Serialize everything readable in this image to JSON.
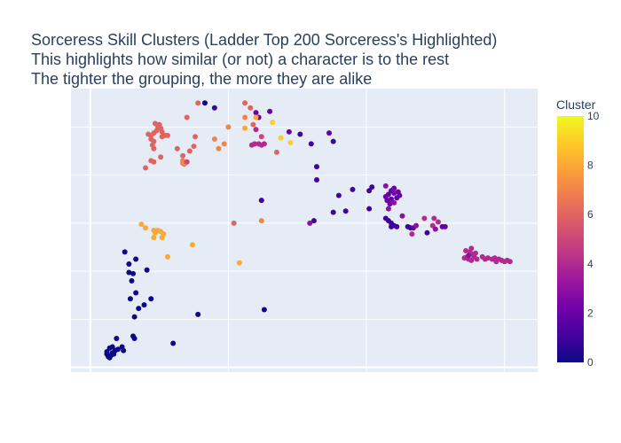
{
  "title": {
    "line1": "Sorceress Skill Clusters (Ladder Top 200 Sorceress's Highlighted)",
    "line2": "This highlights how similar (or not) a character is to the rest",
    "line3": "The tighter the grouping, the more they are alike"
  },
  "chart_data": {
    "type": "scatter",
    "title": "Sorceress Skill Clusters (Ladder Top 200 Sorceress's Highlighted)",
    "xlabel": "",
    "ylabel": "",
    "xlim": [
      -0.7,
      16.2
    ],
    "ylim": [
      -0.2,
      11.6
    ],
    "grid": true,
    "show_tick_labels": false,
    "colorbar": {
      "title": "Cluster",
      "min": 0,
      "max": 10,
      "ticks": [
        "0",
        "2",
        "4",
        "6",
        "8",
        "10"
      ],
      "colorscale": [
        "#0d0887",
        "#46039f",
        "#7201a8",
        "#9c179e",
        "#bd3786",
        "#d8576b",
        "#ed7953",
        "#fb9f3a",
        "#fdca26",
        "#f0f921"
      ]
    },
    "points": [
      {
        "x": 0.6,
        "y": 0.55,
        "c": 0
      },
      {
        "x": 0.65,
        "y": 0.45,
        "c": 0
      },
      {
        "x": 0.7,
        "y": 0.4,
        "c": 0
      },
      {
        "x": 0.75,
        "y": 0.5,
        "c": 0
      },
      {
        "x": 0.8,
        "y": 0.6,
        "c": 0
      },
      {
        "x": 0.85,
        "y": 0.55,
        "c": 0
      },
      {
        "x": 0.6,
        "y": 0.65,
        "c": 0
      },
      {
        "x": 0.9,
        "y": 0.7,
        "c": 0
      },
      {
        "x": 1.0,
        "y": 0.75,
        "c": 0
      },
      {
        "x": 0.8,
        "y": 0.85,
        "c": 0
      },
      {
        "x": 1.2,
        "y": 0.7,
        "c": 0
      },
      {
        "x": 1.15,
        "y": 0.85,
        "c": 0
      },
      {
        "x": 0.95,
        "y": 1.2,
        "c": 0
      },
      {
        "x": 0.7,
        "y": 0.8,
        "c": 0
      },
      {
        "x": 1.55,
        "y": 1.3,
        "c": 0
      },
      {
        "x": 1.6,
        "y": 1.2,
        "c": 0
      },
      {
        "x": 1.6,
        "y": 2.1,
        "c": 0
      },
      {
        "x": 1.45,
        "y": 2.85,
        "c": 0
      },
      {
        "x": 1.75,
        "y": 2.45,
        "c": 0
      },
      {
        "x": 1.95,
        "y": 2.6,
        "c": 0
      },
      {
        "x": 2.2,
        "y": 2.85,
        "c": 0
      },
      {
        "x": 1.65,
        "y": 3.1,
        "c": 0
      },
      {
        "x": 1.5,
        "y": 3.6,
        "c": 0
      },
      {
        "x": 1.55,
        "y": 3.9,
        "c": 0
      },
      {
        "x": 1.4,
        "y": 3.95,
        "c": 0
      },
      {
        "x": 1.4,
        "y": 4.3,
        "c": 0
      },
      {
        "x": 1.65,
        "y": 4.5,
        "c": 0
      },
      {
        "x": 1.25,
        "y": 4.8,
        "c": 0
      },
      {
        "x": 2.05,
        "y": 4.05,
        "c": 0
      },
      {
        "x": 3.0,
        "y": 1.0,
        "c": 0
      },
      {
        "x": 3.9,
        "y": 2.2,
        "c": 0
      },
      {
        "x": 6.3,
        "y": 2.4,
        "c": 0
      },
      {
        "x": 4.15,
        "y": 11.0,
        "c": 0
      },
      {
        "x": 4.5,
        "y": 10.8,
        "c": 1
      },
      {
        "x": 6.0,
        "y": 10.6,
        "c": 2
      },
      {
        "x": 6.1,
        "y": 10.4,
        "c": 2
      },
      {
        "x": 6.5,
        "y": 10.65,
        "c": 2
      },
      {
        "x": 7.2,
        "y": 9.8,
        "c": 2
      },
      {
        "x": 7.6,
        "y": 9.7,
        "c": 1
      },
      {
        "x": 8.0,
        "y": 9.3,
        "c": 1
      },
      {
        "x": 8.8,
        "y": 9.4,
        "c": 1
      },
      {
        "x": 8.65,
        "y": 9.75,
        "c": 2
      },
      {
        "x": 8.2,
        "y": 8.35,
        "c": 1
      },
      {
        "x": 8.2,
        "y": 7.8,
        "c": 1
      },
      {
        "x": 9.0,
        "y": 7.15,
        "c": 1
      },
      {
        "x": 9.5,
        "y": 7.4,
        "c": 1
      },
      {
        "x": 10.2,
        "y": 7.5,
        "c": 1
      },
      {
        "x": 10.1,
        "y": 7.35,
        "c": 1
      },
      {
        "x": 10.1,
        "y": 6.6,
        "c": 1
      },
      {
        "x": 9.25,
        "y": 6.5,
        "c": 1
      },
      {
        "x": 8.8,
        "y": 6.45,
        "c": 1
      },
      {
        "x": 8.1,
        "y": 6.1,
        "c": 1
      },
      {
        "x": 7.95,
        "y": 6.0,
        "c": 3
      },
      {
        "x": 6.2,
        "y": 6.95,
        "c": 1
      },
      {
        "x": 10.7,
        "y": 7.1,
        "c": 2
      },
      {
        "x": 10.8,
        "y": 7.2,
        "c": 2
      },
      {
        "x": 10.9,
        "y": 7.35,
        "c": 2
      },
      {
        "x": 11.0,
        "y": 7.25,
        "c": 2
      },
      {
        "x": 11.1,
        "y": 7.05,
        "c": 2
      },
      {
        "x": 11.2,
        "y": 7.15,
        "c": 2
      },
      {
        "x": 10.75,
        "y": 6.95,
        "c": 2
      },
      {
        "x": 10.9,
        "y": 7.0,
        "c": 2
      },
      {
        "x": 11.0,
        "y": 7.45,
        "c": 2
      },
      {
        "x": 10.7,
        "y": 7.55,
        "c": 3
      },
      {
        "x": 11.15,
        "y": 7.3,
        "c": 2
      },
      {
        "x": 10.85,
        "y": 6.8,
        "c": 2
      },
      {
        "x": 10.8,
        "y": 6.6,
        "c": 3
      },
      {
        "x": 11.0,
        "y": 6.85,
        "c": 3
      },
      {
        "x": 10.7,
        "y": 6.2,
        "c": 1
      },
      {
        "x": 10.8,
        "y": 6.1,
        "c": 1
      },
      {
        "x": 10.9,
        "y": 6.0,
        "c": 1
      },
      {
        "x": 11.0,
        "y": 5.9,
        "c": 1
      },
      {
        "x": 11.1,
        "y": 5.85,
        "c": 1
      },
      {
        "x": 10.9,
        "y": 5.85,
        "c": 1
      },
      {
        "x": 11.3,
        "y": 6.3,
        "c": 3
      },
      {
        "x": 11.5,
        "y": 5.85,
        "c": 1
      },
      {
        "x": 11.6,
        "y": 5.8,
        "c": 1
      },
      {
        "x": 11.7,
        "y": 5.8,
        "c": 2
      },
      {
        "x": 11.8,
        "y": 5.9,
        "c": 3
      },
      {
        "x": 11.65,
        "y": 5.55,
        "c": 4
      },
      {
        "x": 12.1,
        "y": 6.2,
        "c": 4
      },
      {
        "x": 12.45,
        "y": 6.2,
        "c": 4
      },
      {
        "x": 12.6,
        "y": 6.05,
        "c": 4
      },
      {
        "x": 12.4,
        "y": 5.9,
        "c": 4
      },
      {
        "x": 12.5,
        "y": 5.75,
        "c": 3
      },
      {
        "x": 12.75,
        "y": 5.85,
        "c": 2
      },
      {
        "x": 12.85,
        "y": 5.85,
        "c": 2
      },
      {
        "x": 12.2,
        "y": 5.6,
        "c": 1
      },
      {
        "x": 13.55,
        "y": 4.55,
        "c": 4
      },
      {
        "x": 13.65,
        "y": 4.6,
        "c": 4
      },
      {
        "x": 13.7,
        "y": 4.5,
        "c": 4
      },
      {
        "x": 13.8,
        "y": 4.45,
        "c": 4
      },
      {
        "x": 13.9,
        "y": 4.6,
        "c": 4
      },
      {
        "x": 14.0,
        "y": 4.5,
        "c": 4
      },
      {
        "x": 13.85,
        "y": 4.7,
        "c": 4
      },
      {
        "x": 13.75,
        "y": 4.8,
        "c": 4
      },
      {
        "x": 13.6,
        "y": 4.85,
        "c": 4
      },
      {
        "x": 13.95,
        "y": 4.75,
        "c": 4
      },
      {
        "x": 13.7,
        "y": 4.65,
        "c": 3
      },
      {
        "x": 14.3,
        "y": 4.5,
        "c": 4
      },
      {
        "x": 14.4,
        "y": 4.55,
        "c": 4
      },
      {
        "x": 14.55,
        "y": 4.5,
        "c": 4
      },
      {
        "x": 14.65,
        "y": 4.55,
        "c": 4
      },
      {
        "x": 14.8,
        "y": 4.5,
        "c": 4
      },
      {
        "x": 14.9,
        "y": 4.45,
        "c": 4
      },
      {
        "x": 15.0,
        "y": 4.4,
        "c": 4
      },
      {
        "x": 15.1,
        "y": 4.45,
        "c": 4
      },
      {
        "x": 15.2,
        "y": 4.4,
        "c": 4
      },
      {
        "x": 14.7,
        "y": 4.4,
        "c": 4
      },
      {
        "x": 14.2,
        "y": 4.6,
        "c": 4
      },
      {
        "x": 13.8,
        "y": 4.95,
        "c": 4
      },
      {
        "x": 3.9,
        "y": 11.0,
        "c": 6
      },
      {
        "x": 5.6,
        "y": 11.0,
        "c": 6
      },
      {
        "x": 5.8,
        "y": 10.8,
        "c": 6
      },
      {
        "x": 5.6,
        "y": 10.4,
        "c": 7
      },
      {
        "x": 6.0,
        "y": 10.4,
        "c": 8
      },
      {
        "x": 5.9,
        "y": 10.1,
        "c": 6
      },
      {
        "x": 5.6,
        "y": 9.95,
        "c": 8
      },
      {
        "x": 6.0,
        "y": 9.9,
        "c": 4
      },
      {
        "x": 6.6,
        "y": 10.2,
        "c": 9
      },
      {
        "x": 6.2,
        "y": 9.6,
        "c": 5
      },
      {
        "x": 6.9,
        "y": 9.55,
        "c": 9
      },
      {
        "x": 5.95,
        "y": 9.3,
        "c": 4
      },
      {
        "x": 6.1,
        "y": 9.3,
        "c": 4
      },
      {
        "x": 6.2,
        "y": 9.25,
        "c": 4
      },
      {
        "x": 6.3,
        "y": 9.3,
        "c": 4
      },
      {
        "x": 5.85,
        "y": 9.25,
        "c": 4
      },
      {
        "x": 6.75,
        "y": 8.95,
        "c": 6
      },
      {
        "x": 7.25,
        "y": 9.35,
        "c": 9
      },
      {
        "x": 5.0,
        "y": 10.0,
        "c": 7
      },
      {
        "x": 4.5,
        "y": 9.5,
        "c": 7
      },
      {
        "x": 4.65,
        "y": 9.1,
        "c": 7
      },
      {
        "x": 3.8,
        "y": 9.6,
        "c": 6
      },
      {
        "x": 3.75,
        "y": 9.2,
        "c": 6
      },
      {
        "x": 3.6,
        "y": 9.0,
        "c": 6
      },
      {
        "x": 3.35,
        "y": 8.8,
        "c": 6
      },
      {
        "x": 3.15,
        "y": 9.1,
        "c": 6
      },
      {
        "x": 3.5,
        "y": 10.4,
        "c": 6
      },
      {
        "x": 4.85,
        "y": 9.3,
        "c": 7
      },
      {
        "x": 2.1,
        "y": 9.7,
        "c": 6
      },
      {
        "x": 2.2,
        "y": 9.65,
        "c": 6
      },
      {
        "x": 2.3,
        "y": 9.75,
        "c": 6
      },
      {
        "x": 2.4,
        "y": 9.85,
        "c": 6
      },
      {
        "x": 2.45,
        "y": 10.0,
        "c": 6
      },
      {
        "x": 2.5,
        "y": 10.1,
        "c": 6
      },
      {
        "x": 2.55,
        "y": 9.95,
        "c": 6
      },
      {
        "x": 2.6,
        "y": 9.8,
        "c": 6
      },
      {
        "x": 2.35,
        "y": 10.15,
        "c": 6
      },
      {
        "x": 2.2,
        "y": 9.5,
        "c": 6
      },
      {
        "x": 2.3,
        "y": 9.4,
        "c": 6
      },
      {
        "x": 2.6,
        "y": 9.6,
        "c": 6
      },
      {
        "x": 2.25,
        "y": 9.25,
        "c": 6
      },
      {
        "x": 2.3,
        "y": 9.1,
        "c": 6
      },
      {
        "x": 2.8,
        "y": 9.65,
        "c": 6
      },
      {
        "x": 2.7,
        "y": 9.65,
        "c": 6
      },
      {
        "x": 2.2,
        "y": 8.6,
        "c": 6
      },
      {
        "x": 2.3,
        "y": 8.55,
        "c": 6
      },
      {
        "x": 2.55,
        "y": 8.75,
        "c": 6
      },
      {
        "x": 2.0,
        "y": 8.3,
        "c": 6
      },
      {
        "x": 3.35,
        "y": 8.6,
        "c": 7
      },
      {
        "x": 3.4,
        "y": 8.45,
        "c": 7
      },
      {
        "x": 3.35,
        "y": 8.5,
        "c": 7
      },
      {
        "x": 3.5,
        "y": 8.55,
        "c": 5
      },
      {
        "x": 5.2,
        "y": 6.0,
        "c": 6
      },
      {
        "x": 6.2,
        "y": 6.1,
        "c": 7
      },
      {
        "x": 5.4,
        "y": 4.35,
        "c": 8
      },
      {
        "x": 1.85,
        "y": 5.95,
        "c": 8
      },
      {
        "x": 2.0,
        "y": 5.8,
        "c": 8
      },
      {
        "x": 2.3,
        "y": 5.7,
        "c": 8
      },
      {
        "x": 2.35,
        "y": 5.6,
        "c": 8
      },
      {
        "x": 2.45,
        "y": 5.7,
        "c": 8
      },
      {
        "x": 2.55,
        "y": 5.65,
        "c": 8
      },
      {
        "x": 2.65,
        "y": 5.55,
        "c": 8
      },
      {
        "x": 2.6,
        "y": 5.4,
        "c": 8
      },
      {
        "x": 2.3,
        "y": 5.4,
        "c": 8
      },
      {
        "x": 2.8,
        "y": 4.6,
        "c": 8
      },
      {
        "x": 3.7,
        "y": 5.1,
        "c": 8
      }
    ]
  }
}
